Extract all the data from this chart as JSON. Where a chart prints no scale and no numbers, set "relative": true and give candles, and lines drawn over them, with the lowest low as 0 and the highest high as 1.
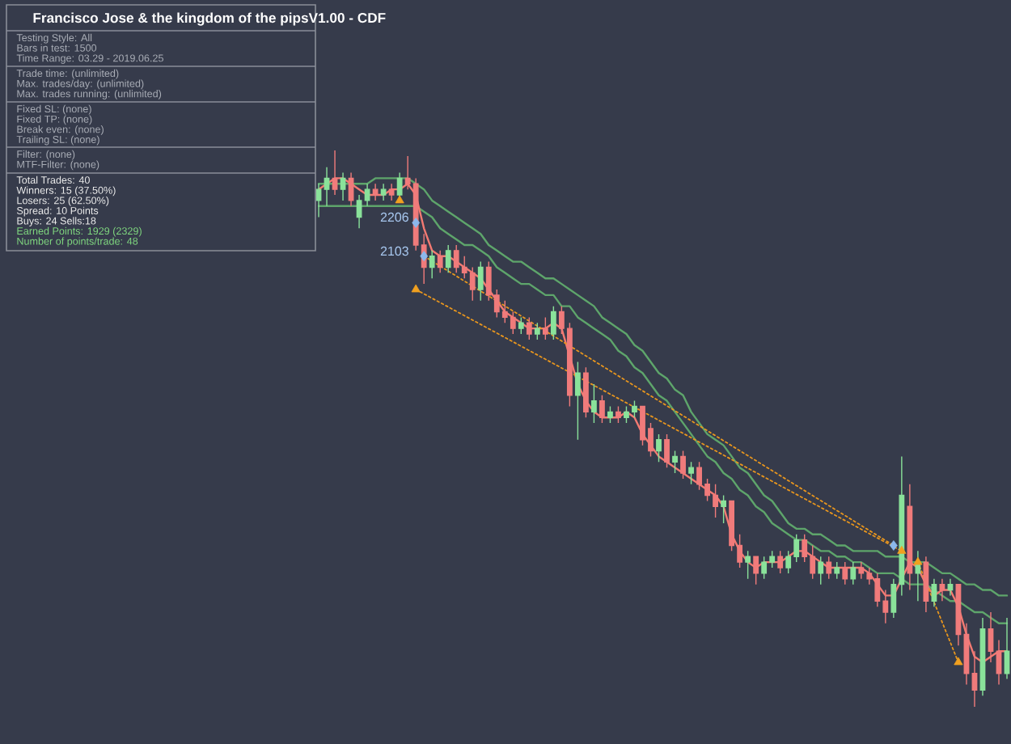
{
  "chart_data": {
    "type": "candlestick",
    "relative": true,
    "title": "Francisco Jose & the kingdom of the pipsV1.00 - CDF",
    "annotations": [
      "Testing Style: All",
      "Bars in test: 1500",
      "Time Range: 03.29 - 2019.06.25",
      "Trade time: (unlimited)",
      "Max. trades/day: (unlimited)",
      "Max. trades running: (unlimited)",
      "Fixed SL: (none)",
      "Fixed TP: (none)",
      "Break even: (none)",
      "Trailing SL: (none)",
      "Filter: (none)",
      "MTF-Filter: (none)",
      "Total Trades: 40",
      "Winners: 15 (37.50%)",
      "Losers: 25 (62.50%)",
      "Spread: 10 Points",
      "Buys: 24 Sells:18",
      "Earned Points: 1929 (2329)",
      "Number of points/trade: 48",
      "2206",
      "2103"
    ],
    "categories": [
      null,
      null,
      null,
      null,
      null,
      null,
      null,
      null,
      null,
      null,
      null,
      null,
      null,
      null,
      null,
      null,
      null,
      null,
      null,
      null,
      null,
      null,
      null,
      null,
      null,
      null,
      null,
      null,
      null,
      null,
      null,
      null,
      null,
      null,
      null,
      null,
      null,
      null,
      null,
      null,
      null,
      null,
      null,
      null,
      null,
      null,
      null,
      null,
      null,
      null,
      null,
      null,
      null,
      null,
      null,
      null,
      null,
      null,
      null,
      null,
      null,
      null,
      null,
      null,
      null,
      null,
      null,
      null,
      null,
      null,
      null,
      null,
      null,
      null,
      null,
      null,
      null,
      null,
      null,
      null,
      null,
      null,
      null,
      null,
      null,
      null
    ],
    "ohlc": [
      [
        0.91,
        0.94,
        0.88,
        0.93
      ],
      [
        0.93,
        0.97,
        0.9,
        0.95
      ],
      [
        0.95,
        1.0,
        0.92,
        0.93
      ],
      [
        0.93,
        0.96,
        0.91,
        0.95
      ],
      [
        0.95,
        0.96,
        0.9,
        0.91
      ],
      [
        0.88,
        0.92,
        0.86,
        0.91
      ],
      [
        0.91,
        0.94,
        0.9,
        0.93
      ],
      [
        0.93,
        0.94,
        0.91,
        0.92
      ],
      [
        0.92,
        0.94,
        0.91,
        0.93
      ],
      [
        0.93,
        0.94,
        0.91,
        0.92
      ],
      [
        0.92,
        0.96,
        0.91,
        0.95
      ],
      [
        0.95,
        0.99,
        0.93,
        0.94
      ],
      [
        0.94,
        0.95,
        0.82,
        0.83
      ],
      [
        0.83,
        0.85,
        0.76,
        0.79
      ],
      [
        0.79,
        0.82,
        0.77,
        0.81
      ],
      [
        0.81,
        0.82,
        0.78,
        0.79
      ],
      [
        0.79,
        0.83,
        0.78,
        0.82
      ],
      [
        0.82,
        0.83,
        0.78,
        0.79
      ],
      [
        0.79,
        0.81,
        0.77,
        0.78
      ],
      [
        0.78,
        0.79,
        0.73,
        0.75
      ],
      [
        0.75,
        0.8,
        0.73,
        0.79
      ],
      [
        0.79,
        0.8,
        0.73,
        0.74
      ],
      [
        0.74,
        0.75,
        0.7,
        0.71
      ],
      [
        0.71,
        0.73,
        0.69,
        0.7
      ],
      [
        0.7,
        0.71,
        0.67,
        0.68
      ],
      [
        0.68,
        0.7,
        0.67,
        0.69
      ],
      [
        0.69,
        0.7,
        0.66,
        0.67
      ],
      [
        0.67,
        0.69,
        0.66,
        0.68
      ],
      [
        0.68,
        0.7,
        0.66,
        0.67
      ],
      [
        0.67,
        0.72,
        0.66,
        0.71
      ],
      [
        0.71,
        0.72,
        0.67,
        0.68
      ],
      [
        0.68,
        0.69,
        0.54,
        0.56
      ],
      [
        0.56,
        0.62,
        0.48,
        0.6
      ],
      [
        0.6,
        0.61,
        0.52,
        0.53
      ],
      [
        0.53,
        0.58,
        0.51,
        0.55
      ],
      [
        0.55,
        0.56,
        0.51,
        0.52
      ],
      [
        0.52,
        0.54,
        0.51,
        0.53
      ],
      [
        0.53,
        0.54,
        0.51,
        0.52
      ],
      [
        0.52,
        0.54,
        0.51,
        0.53
      ],
      [
        0.53,
        0.55,
        0.52,
        0.54
      ],
      [
        0.54,
        0.54,
        0.47,
        0.48
      ],
      [
        0.5,
        0.51,
        0.45,
        0.46
      ],
      [
        0.46,
        0.49,
        0.44,
        0.48
      ],
      [
        0.48,
        0.49,
        0.43,
        0.44
      ],
      [
        0.44,
        0.46,
        0.42,
        0.45
      ],
      [
        0.45,
        0.46,
        0.41,
        0.42
      ],
      [
        0.42,
        0.44,
        0.4,
        0.43
      ],
      [
        0.43,
        0.44,
        0.39,
        0.4
      ],
      [
        0.4,
        0.41,
        0.37,
        0.38
      ],
      [
        0.38,
        0.4,
        0.34,
        0.36
      ],
      [
        0.36,
        0.38,
        0.33,
        0.37
      ],
      [
        0.37,
        0.37,
        0.28,
        0.29
      ],
      [
        0.29,
        0.31,
        0.25,
        0.26
      ],
      [
        0.26,
        0.28,
        0.23,
        0.27
      ],
      [
        0.27,
        0.27,
        0.22,
        0.24
      ],
      [
        0.24,
        0.27,
        0.23,
        0.26
      ],
      [
        0.26,
        0.28,
        0.25,
        0.27
      ],
      [
        0.27,
        0.28,
        0.24,
        0.25
      ],
      [
        0.25,
        0.28,
        0.24,
        0.27
      ],
      [
        0.27,
        0.31,
        0.26,
        0.3
      ],
      [
        0.3,
        0.31,
        0.26,
        0.27
      ],
      [
        0.27,
        0.29,
        0.23,
        0.24
      ],
      [
        0.24,
        0.27,
        0.22,
        0.26
      ],
      [
        0.26,
        0.27,
        0.23,
        0.24
      ],
      [
        0.24,
        0.26,
        0.23,
        0.25
      ],
      [
        0.25,
        0.26,
        0.22,
        0.23
      ],
      [
        0.23,
        0.26,
        0.22,
        0.25
      ],
      [
        0.25,
        0.26,
        0.23,
        0.24
      ],
      [
        0.24,
        0.25,
        0.22,
        0.23
      ],
      [
        0.23,
        0.24,
        0.18,
        0.19
      ],
      [
        0.19,
        0.21,
        0.15,
        0.17
      ],
      [
        0.17,
        0.23,
        0.16,
        0.22
      ],
      [
        0.22,
        0.45,
        0.2,
        0.38
      ],
      [
        0.36,
        0.4,
        0.21,
        0.24
      ],
      [
        0.24,
        0.28,
        0.19,
        0.26
      ],
      [
        0.26,
        0.27,
        0.17,
        0.19
      ],
      [
        0.19,
        0.23,
        0.18,
        0.22
      ],
      [
        0.22,
        0.23,
        0.19,
        0.21
      ],
      [
        0.21,
        0.23,
        0.2,
        0.22
      ],
      [
        0.22,
        0.22,
        0.11,
        0.13
      ],
      [
        0.13,
        0.15,
        0.04,
        0.06
      ],
      [
        0.06,
        0.1,
        0.0,
        0.03
      ],
      [
        0.03,
        0.16,
        0.02,
        0.14
      ],
      [
        0.14,
        0.17,
        0.08,
        0.1
      ],
      [
        0.1,
        0.12,
        0.04,
        0.06
      ],
      [
        0.06,
        0.16,
        0.05,
        0.1
      ]
    ],
    "colors": [
      "#8ae29a",
      "#8ae29a",
      "#f07b7b",
      "#8ae29a",
      "#f07b7b",
      "#8ae29a",
      "#8ae29a",
      "#f07b7b",
      "#8ae29a",
      "#f07b7b",
      "#8ae29a",
      "#f07b7b",
      "#f07b7b",
      "#f07b7b",
      "#8ae29a",
      "#f07b7b",
      "#8ae29a",
      "#f07b7b",
      "#f07b7b",
      "#f07b7b",
      "#8ae29a",
      "#f07b7b",
      "#f07b7b",
      "#f07b7b",
      "#f07b7b",
      "#8ae29a",
      "#f07b7b",
      "#8ae29a",
      "#f07b7b",
      "#8ae29a",
      "#f07b7b",
      "#f07b7b",
      "#8ae29a",
      "#f07b7b",
      "#8ae29a",
      "#f07b7b",
      "#8ae29a",
      "#f07b7b",
      "#8ae29a",
      "#8ae29a",
      "#f07b7b",
      "#f07b7b",
      "#8ae29a",
      "#f07b7b",
      "#8ae29a",
      "#f07b7b",
      "#8ae29a",
      "#f07b7b",
      "#f07b7b",
      "#f07b7b",
      "#8ae29a",
      "#f07b7b",
      "#f07b7b",
      "#8ae29a",
      "#f07b7b",
      "#8ae29a",
      "#8ae29a",
      "#f07b7b",
      "#8ae29a",
      "#8ae29a",
      "#f07b7b",
      "#f07b7b",
      "#8ae29a",
      "#f07b7b",
      "#8ae29a",
      "#f07b7b",
      "#8ae29a",
      "#f07b7b",
      "#f07b7b",
      "#f07b7b",
      "#f07b7b",
      "#8ae29a",
      "#8ae29a",
      "#f07b7b",
      "#8ae29a",
      "#f07b7b",
      "#8ae29a",
      "#f07b7b",
      "#8ae29a",
      "#f07b7b",
      "#f07b7b",
      "#f07b7b",
      "#8ae29a",
      "#f07b7b",
      "#f07b7b",
      "#8ae29a"
    ],
    "series": [
      {
        "type": "line",
        "color": "#5ea56b",
        "line_style": "solid",
        "values": [
          0.94,
          0.94,
          0.94,
          0.94,
          0.94,
          0.94,
          0.94,
          0.95,
          0.95,
          0.95,
          0.95,
          0.95,
          0.94,
          0.93,
          0.91,
          0.9,
          0.89,
          0.88,
          0.87,
          0.86,
          0.85,
          0.83,
          0.82,
          0.81,
          0.8,
          0.8,
          0.79,
          0.78,
          0.77,
          0.77,
          0.76,
          0.75,
          0.74,
          0.73,
          0.72,
          0.7,
          0.69,
          0.68,
          0.67,
          0.65,
          0.64,
          0.62,
          0.6,
          0.59,
          0.57,
          0.56,
          0.53,
          0.51,
          0.49,
          0.48,
          0.47,
          0.45,
          0.43,
          0.42,
          0.4,
          0.38,
          0.37,
          0.35,
          0.33,
          0.32,
          0.32,
          0.31,
          0.31,
          0.3,
          0.29,
          0.29,
          0.28,
          0.28,
          0.28,
          0.28,
          0.27,
          0.27,
          0.27,
          0.26,
          0.26,
          0.26,
          0.25,
          0.24,
          0.24,
          0.23,
          0.22,
          0.22,
          0.21,
          0.21,
          0.2,
          0.2
        ]
      },
      {
        "type": "line",
        "color": "#5ea56b",
        "line_style": "solid",
        "values": [
          0.9,
          0.9,
          0.9,
          0.9,
          0.9,
          0.9,
          0.9,
          0.9,
          0.9,
          0.9,
          0.9,
          0.9,
          0.9,
          0.89,
          0.88,
          0.86,
          0.85,
          0.84,
          0.83,
          0.83,
          0.82,
          0.81,
          0.79,
          0.78,
          0.77,
          0.76,
          0.76,
          0.75,
          0.74,
          0.74,
          0.72,
          0.72,
          0.7,
          0.69,
          0.68,
          0.67,
          0.66,
          0.64,
          0.63,
          0.61,
          0.6,
          0.58,
          0.56,
          0.55,
          0.53,
          0.51,
          0.49,
          0.47,
          0.45,
          0.44,
          0.42,
          0.41,
          0.39,
          0.38,
          0.36,
          0.35,
          0.33,
          0.32,
          0.31,
          0.3,
          0.3,
          0.29,
          0.28,
          0.28,
          0.27,
          0.27,
          0.26,
          0.26,
          0.25,
          0.24,
          0.24,
          0.24,
          0.23,
          0.22,
          0.22,
          0.22,
          0.21,
          0.2,
          0.19,
          0.19,
          0.18,
          0.17,
          0.17,
          0.16,
          0.15,
          0.15
        ]
      },
      {
        "type": "line",
        "color": "#f47a72",
        "line_style": "solid",
        "values": [
          0.93,
          0.94,
          0.95,
          0.95,
          0.94,
          0.93,
          0.92,
          0.92,
          0.92,
          0.93,
          0.93,
          0.94,
          0.92,
          0.86,
          0.82,
          0.81,
          0.81,
          0.8,
          0.79,
          0.78,
          0.77,
          0.75,
          0.73,
          0.71,
          0.7,
          0.69,
          0.68,
          0.68,
          0.68,
          0.69,
          0.68,
          0.63,
          0.58,
          0.55,
          0.53,
          0.52,
          0.52,
          0.52,
          0.53,
          0.52,
          0.49,
          0.47,
          0.45,
          0.44,
          0.43,
          0.42,
          0.41,
          0.4,
          0.39,
          0.38,
          0.36,
          0.31,
          0.28,
          0.26,
          0.25,
          0.26,
          0.26,
          0.26,
          0.27,
          0.28,
          0.28,
          0.27,
          0.26,
          0.25,
          0.25,
          0.25,
          0.25,
          0.25,
          0.24,
          0.22,
          0.2,
          0.2,
          0.23,
          0.26,
          0.25,
          0.22,
          0.2,
          0.21,
          0.21,
          0.18,
          0.13,
          0.09,
          0.08,
          0.09,
          0.1,
          0.1
        ]
      },
      {
        "type": "line",
        "color": "#e8961e",
        "line_style": "dotted",
        "values": [
          null,
          null,
          null,
          null,
          null,
          null,
          null,
          null,
          null,
          null,
          null,
          null,
          null,
          0.81,
          null,
          null,
          null,
          null,
          null,
          null,
          null,
          null,
          null,
          null,
          null,
          null,
          null,
          null,
          null,
          null,
          null,
          null,
          null,
          null,
          null,
          null,
          null,
          null,
          null,
          null,
          null,
          null,
          null,
          null,
          null,
          null,
          null,
          null,
          null,
          null,
          null,
          null,
          null,
          null,
          null,
          null,
          null,
          null,
          null,
          null,
          null,
          null,
          null,
          null,
          null,
          null,
          null,
          null,
          null,
          null,
          null,
          0.29,
          null,
          null,
          null,
          null,
          null,
          null,
          null,
          null,
          null,
          null,
          null,
          null,
          null,
          null
        ]
      },
      {
        "type": "line",
        "color": "#e8961e",
        "line_style": "dotted",
        "values": [
          null,
          null,
          null,
          null,
          null,
          null,
          null,
          null,
          null,
          null,
          null,
          null,
          0.75,
          null,
          null,
          null,
          null,
          null,
          null,
          null,
          null,
          null,
          null,
          null,
          null,
          null,
          null,
          null,
          null,
          null,
          null,
          null,
          null,
          null,
          null,
          null,
          null,
          null,
          null,
          null,
          null,
          null,
          null,
          null,
          null,
          null,
          null,
          null,
          null,
          null,
          null,
          null,
          null,
          null,
          null,
          null,
          null,
          null,
          null,
          null,
          null,
          null,
          null,
          null,
          null,
          null,
          null,
          null,
          null,
          null,
          null,
          null,
          0.28,
          null,
          null,
          null,
          null,
          null,
          null,
          null,
          null,
          null,
          null,
          null,
          null,
          null
        ]
      },
      {
        "type": "line",
        "color": "#e8961e",
        "line_style": "dotted",
        "values": [
          null,
          null,
          null,
          null,
          null,
          null,
          null,
          null,
          null,
          null,
          null,
          null,
          null,
          null,
          null,
          null,
          null,
          null,
          null,
          null,
          null,
          null,
          null,
          null,
          null,
          null,
          null,
          null,
          null,
          null,
          null,
          null,
          null,
          null,
          null,
          null,
          null,
          null,
          null,
          null,
          null,
          null,
          null,
          null,
          null,
          null,
          null,
          null,
          null,
          null,
          null,
          null,
          null,
          null,
          null,
          null,
          null,
          null,
          null,
          null,
          null,
          null,
          null,
          null,
          null,
          null,
          null,
          null,
          null,
          null,
          null,
          null,
          null,
          null,
          0.26,
          null,
          null,
          null,
          null,
          0.08,
          null,
          null,
          null,
          null,
          null,
          null
        ]
      },
      {
        "type": "scatter",
        "color": "#f0a020",
        "marker": "triangle",
        "values": [
          null,
          null,
          null,
          null,
          null,
          null,
          null,
          null,
          null,
          null,
          0.91,
          null,
          0.75,
          null,
          null,
          null,
          null,
          null,
          null,
          null,
          null,
          null,
          null,
          null,
          null,
          null,
          null,
          null,
          null,
          null,
          null,
          null,
          null,
          null,
          null,
          null,
          null,
          null,
          null,
          null,
          null,
          null,
          null,
          null,
          null,
          null,
          null,
          null,
          null,
          null,
          null,
          null,
          null,
          null,
          null,
          null,
          null,
          null,
          null,
          null,
          null,
          null,
          null,
          null,
          null,
          null,
          null,
          null,
          null,
          null,
          null,
          null,
          0.28,
          null,
          0.26,
          null,
          null,
          null,
          null,
          0.08,
          null,
          null,
          null,
          null,
          null,
          null
        ]
      },
      {
        "type": "scatter",
        "color": "#8cb8ec",
        "marker": "diamond",
        "values": [
          null,
          null,
          null,
          null,
          null,
          null,
          null,
          null,
          null,
          null,
          null,
          null,
          0.87,
          0.81,
          null,
          null,
          null,
          null,
          null,
          null,
          null,
          null,
          null,
          null,
          null,
          null,
          null,
          null,
          null,
          null,
          null,
          null,
          null,
          null,
          null,
          null,
          null,
          null,
          null,
          null,
          null,
          null,
          null,
          null,
          null,
          null,
          null,
          null,
          null,
          null,
          null,
          null,
          null,
          null,
          null,
          null,
          null,
          null,
          null,
          null,
          null,
          null,
          null,
          null,
          null,
          null,
          null,
          null,
          null,
          null,
          null,
          0.29,
          null,
          null,
          null,
          null,
          null,
          null,
          null,
          null,
          null,
          null,
          null,
          null,
          null,
          null
        ]
      }
    ]
  }
}
